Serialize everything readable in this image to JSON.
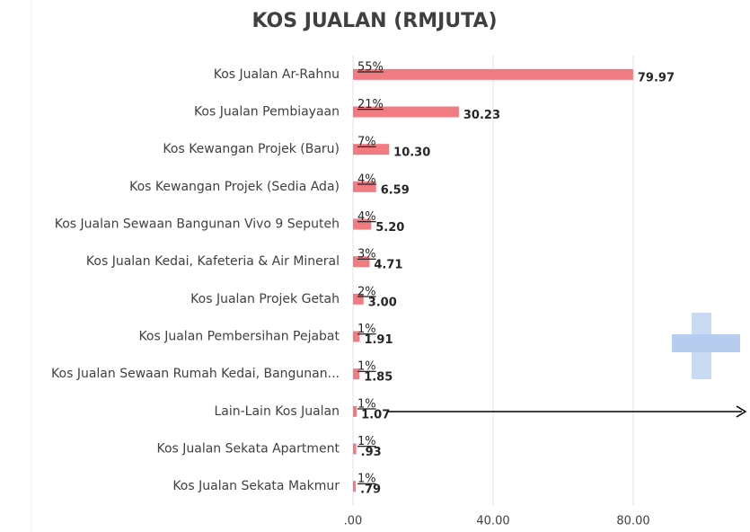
{
  "chart_data": {
    "type": "bar",
    "orientation": "horizontal",
    "title": "KOS JUALAN (RMJUTA)",
    "categories": [
      "Kos Jualan Ar-Rahnu",
      "Kos Jualan Pembiayaan",
      "Kos Kewangan Projek (Baru)",
      "Kos Kewangan Projek (Sedia Ada)",
      "Kos Jualan Sewaan Bangunan Vivo 9 Seputeh",
      "Kos Jualan Kedai, Kafeteria & Air Mineral",
      "Kos Jualan Projek Getah",
      "Kos Jualan Pembersihan Pejabat",
      "Kos Jualan Sewaan Rumah Kedai, Bangunan...",
      "Lain-Lain Kos Jualan",
      "Kos Jualan Sekata Apartment",
      "Kos Jualan Sekata Makmur"
    ],
    "values": [
      79.97,
      30.23,
      10.3,
      6.59,
      5.2,
      4.71,
      3.0,
      1.91,
      1.85,
      1.07,
      0.93,
      0.79
    ],
    "value_labels": [
      "79.97",
      "30.23",
      "10.30",
      "6.59",
      "5.20",
      "4.71",
      "3.00",
      "1.91",
      "1.85",
      "1.07",
      ".93",
      ".79"
    ],
    "percent_labels": [
      "55%",
      "21%",
      "7%",
      "4%",
      "4%",
      "3%",
      "2%",
      "1%",
      "1%",
      "1%",
      "1%",
      "1%"
    ],
    "color": "#f27b82",
    "xlim": [
      0,
      110
    ],
    "xticks": [
      {
        "value": 0,
        "label": ".00"
      },
      {
        "value": 40,
        "label": "40.00"
      },
      {
        "value": 80,
        "label": "80.00"
      }
    ],
    "grid": true
  }
}
